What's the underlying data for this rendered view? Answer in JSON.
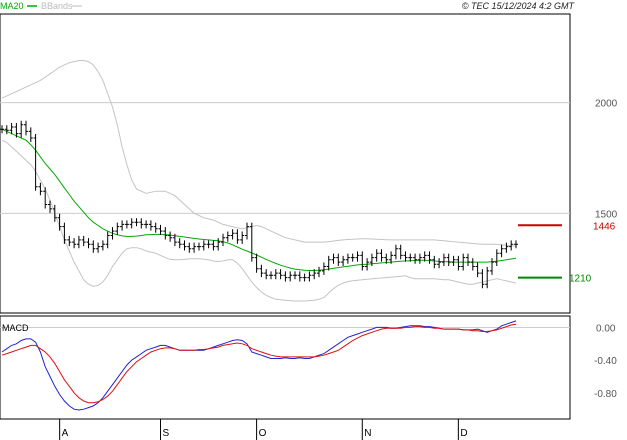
{
  "header": {
    "legend": [
      {
        "label": "MA20",
        "color": "#00aa00"
      },
      {
        "label": "BBands",
        "color": "#bbbbbb"
      }
    ],
    "credit": "© TEC 15/12/2024 4:2 GMT"
  },
  "colors": {
    "ma20": "#00aa00",
    "bbands": "#c4c4c4",
    "price": "#000000",
    "macd": "#2222cc",
    "signal": "#dd1111",
    "resistance": "#cc0000",
    "support": "#008800",
    "grid": "#cccccc",
    "frame": "#000000"
  },
  "chart_data": [
    {
      "type": "ohlc",
      "title": "",
      "y_ticks": [
        {
          "label": "2000",
          "value": 2000
        },
        {
          "label": "1500",
          "value": 1500
        }
      ],
      "ylim": [
        1050,
        2400
      ],
      "x_ticks": [
        {
          "label": "A",
          "index": 12
        },
        {
          "label": "S",
          "index": 33
        },
        {
          "label": "O",
          "index": 53
        },
        {
          "label": "N",
          "index": 75
        },
        {
          "label": "D",
          "index": 95
        }
      ],
      "levels": [
        {
          "label": "1446",
          "value": 1446,
          "role": "resistance"
        },
        {
          "label": "1210",
          "value": 1210,
          "role": "support"
        }
      ],
      "close": [
        1880,
        1875,
        1890,
        1860,
        1900,
        1870,
        1840,
        1620,
        1600,
        1540,
        1520,
        1480,
        1440,
        1380,
        1370,
        1360,
        1380,
        1370,
        1360,
        1340,
        1350,
        1360,
        1400,
        1420,
        1440,
        1450,
        1450,
        1460,
        1460,
        1450,
        1450,
        1440,
        1430,
        1420,
        1400,
        1390,
        1370,
        1360,
        1350,
        1340,
        1350,
        1350,
        1360,
        1360,
        1350,
        1370,
        1390,
        1400,
        1410,
        1380,
        1400,
        1440,
        1300,
        1250,
        1230,
        1220,
        1220,
        1230,
        1220,
        1210,
        1220,
        1220,
        1210,
        1210,
        1220,
        1230,
        1240,
        1260,
        1290,
        1300,
        1280,
        1290,
        1300,
        1300,
        1310,
        1260,
        1280,
        1300,
        1320,
        1300,
        1290,
        1310,
        1340,
        1310,
        1300,
        1300,
        1290,
        1300,
        1310,
        1290,
        1270,
        1280,
        1300,
        1280,
        1290,
        1260,
        1300,
        1280,
        1260,
        1230,
        1180,
        1240,
        1280,
        1320,
        1340,
        1350,
        1360,
        1360
      ],
      "ma20": [
        1880,
        1870,
        1860,
        1850,
        1840,
        1830,
        1810,
        1785,
        1755,
        1725,
        1700,
        1675,
        1645,
        1615,
        1585,
        1555,
        1530,
        1505,
        1480,
        1460,
        1445,
        1430,
        1420,
        1410,
        1403,
        1398,
        1396,
        1396,
        1397,
        1400,
        1403,
        1404,
        1405,
        1405,
        1404,
        1402,
        1399,
        1396,
        1393,
        1390,
        1387,
        1384,
        1382,
        1380,
        1378,
        1376,
        1372,
        1366,
        1358,
        1348,
        1338,
        1330,
        1321,
        1312,
        1302,
        1292,
        1283,
        1274,
        1266,
        1259,
        1253,
        1248,
        1245,
        1243,
        1242,
        1242,
        1243,
        1245,
        1248,
        1252,
        1255,
        1258,
        1261,
        1264,
        1267,
        1269,
        1270,
        1272,
        1274,
        1276,
        1278,
        1280,
        1282,
        1284,
        1285,
        1286,
        1287,
        1288,
        1288,
        1287,
        1285,
        1283,
        1282,
        1281,
        1280,
        1280,
        1280,
        1280,
        1280,
        1280,
        1280,
        1280,
        1282,
        1284,
        1287,
        1290,
        1294,
        1298
      ],
      "bb_upper": [
        2020,
        2030,
        2040,
        2050,
        2060,
        2070,
        2080,
        2090,
        2100,
        2115,
        2130,
        2145,
        2160,
        2170,
        2180,
        2185,
        2190,
        2190,
        2185,
        2170,
        2140,
        2100,
        2040,
        1980,
        1900,
        1800,
        1720,
        1650,
        1610,
        1600,
        1590,
        1595,
        1600,
        1600,
        1600,
        1590,
        1580,
        1560,
        1540,
        1520,
        1500,
        1490,
        1480,
        1475,
        1470,
        1460,
        1450,
        1445,
        1440,
        1435,
        1430,
        1435,
        1440,
        1445,
        1440,
        1430,
        1420,
        1410,
        1400,
        1390,
        1385,
        1380,
        1375,
        1370,
        1370,
        1370,
        1370,
        1370,
        1372,
        1375,
        1378,
        1380,
        1382,
        1383,
        1384,
        1385,
        1385,
        1384,
        1383,
        1382,
        1381,
        1380,
        1380,
        1380,
        1380,
        1380,
        1380,
        1380,
        1380,
        1380,
        1380,
        1378,
        1376,
        1374,
        1372,
        1370,
        1368,
        1366,
        1364,
        1362,
        1360,
        1360,
        1360,
        1360,
        1358,
        1356,
        1354,
        1352
      ],
      "bb_lower": [
        1830,
        1820,
        1800,
        1780,
        1760,
        1740,
        1720,
        1690,
        1650,
        1610,
        1560,
        1500,
        1440,
        1380,
        1330,
        1280,
        1240,
        1200,
        1180,
        1170,
        1175,
        1190,
        1220,
        1260,
        1290,
        1320,
        1340,
        1345,
        1345,
        1340,
        1330,
        1325,
        1320,
        1310,
        1300,
        1292,
        1290,
        1290,
        1292,
        1295,
        1295,
        1295,
        1293,
        1290,
        1285,
        1283,
        1285,
        1290,
        1290,
        1275,
        1250,
        1220,
        1190,
        1165,
        1145,
        1130,
        1120,
        1112,
        1110,
        1108,
        1106,
        1104,
        1104,
        1104,
        1106,
        1108,
        1112,
        1120,
        1140,
        1160,
        1175,
        1185,
        1192,
        1196,
        1198,
        1200,
        1202,
        1204,
        1206,
        1208,
        1210,
        1212,
        1214,
        1216,
        1218,
        1210,
        1205,
        1205,
        1205,
        1205,
        1205,
        1202,
        1200,
        1200,
        1195,
        1190,
        1185,
        1180,
        1180,
        1185,
        1190,
        1195,
        1200,
        1205,
        1200,
        1195,
        1190,
        1185
      ]
    },
    {
      "type": "line",
      "title": "MACD",
      "y_ticks": [
        {
          "label": "0.00",
          "value": 0
        },
        {
          "label": "-0.40",
          "value": -40
        },
        {
          "label": "-0.80",
          "value": -80
        }
      ],
      "ylim": [
        -112,
        14
      ],
      "series": [
        {
          "name": "",
          "values": [
            -30,
            -26,
            -22,
            -20,
            -16,
            -14,
            -14,
            -18,
            -30,
            -48,
            -60,
            -72,
            -82,
            -90,
            -96,
            -100,
            -101,
            -100,
            -98,
            -96,
            -92,
            -86,
            -78,
            -70,
            -62,
            -54,
            -46,
            -40,
            -36,
            -32,
            -28,
            -26,
            -24,
            -22,
            -22,
            -24,
            -26,
            -28,
            -28,
            -28,
            -28,
            -28,
            -28,
            -26,
            -24,
            -22,
            -20,
            -18,
            -16,
            -15,
            -16,
            -20,
            -30,
            -32,
            -34,
            -36,
            -38,
            -38,
            -38,
            -37,
            -38,
            -38,
            -37,
            -38,
            -38,
            -36,
            -34,
            -32,
            -28,
            -24,
            -20,
            -16,
            -12,
            -10,
            -8,
            -6,
            -4,
            -2,
            0,
            0,
            0,
            -1,
            -1,
            0,
            1,
            2,
            2,
            2,
            1,
            1,
            0,
            -1,
            -2,
            -2,
            -2,
            -2,
            -3,
            -3,
            -3,
            -2,
            -4,
            -6,
            -4,
            -2,
            2,
            4,
            6,
            8
          ]
        },
        {
          "name": "",
          "values": [
            -34,
            -32,
            -30,
            -28,
            -26,
            -24,
            -22,
            -22,
            -26,
            -30,
            -36,
            -44,
            -54,
            -64,
            -72,
            -80,
            -86,
            -90,
            -92,
            -92,
            -91,
            -88,
            -84,
            -78,
            -70,
            -62,
            -54,
            -48,
            -42,
            -38,
            -34,
            -30,
            -28,
            -26,
            -25,
            -25,
            -26,
            -28,
            -28,
            -28,
            -28,
            -27,
            -27,
            -26,
            -25,
            -24,
            -22,
            -21,
            -20,
            -19,
            -20,
            -22,
            -26,
            -28,
            -30,
            -32,
            -34,
            -35,
            -36,
            -36,
            -36,
            -36,
            -36,
            -36,
            -36,
            -36,
            -35,
            -34,
            -32,
            -30,
            -28,
            -24,
            -20,
            -16,
            -13,
            -10,
            -8,
            -6,
            -4,
            -2,
            -1,
            -1,
            -1,
            -1,
            0,
            0,
            1,
            1,
            0,
            0,
            -1,
            -1,
            -2,
            -2,
            -2,
            -2,
            -3,
            -3,
            -4,
            -4,
            -5,
            -5,
            -4,
            -3,
            -1,
            1,
            3,
            4
          ]
        }
      ]
    }
  ]
}
